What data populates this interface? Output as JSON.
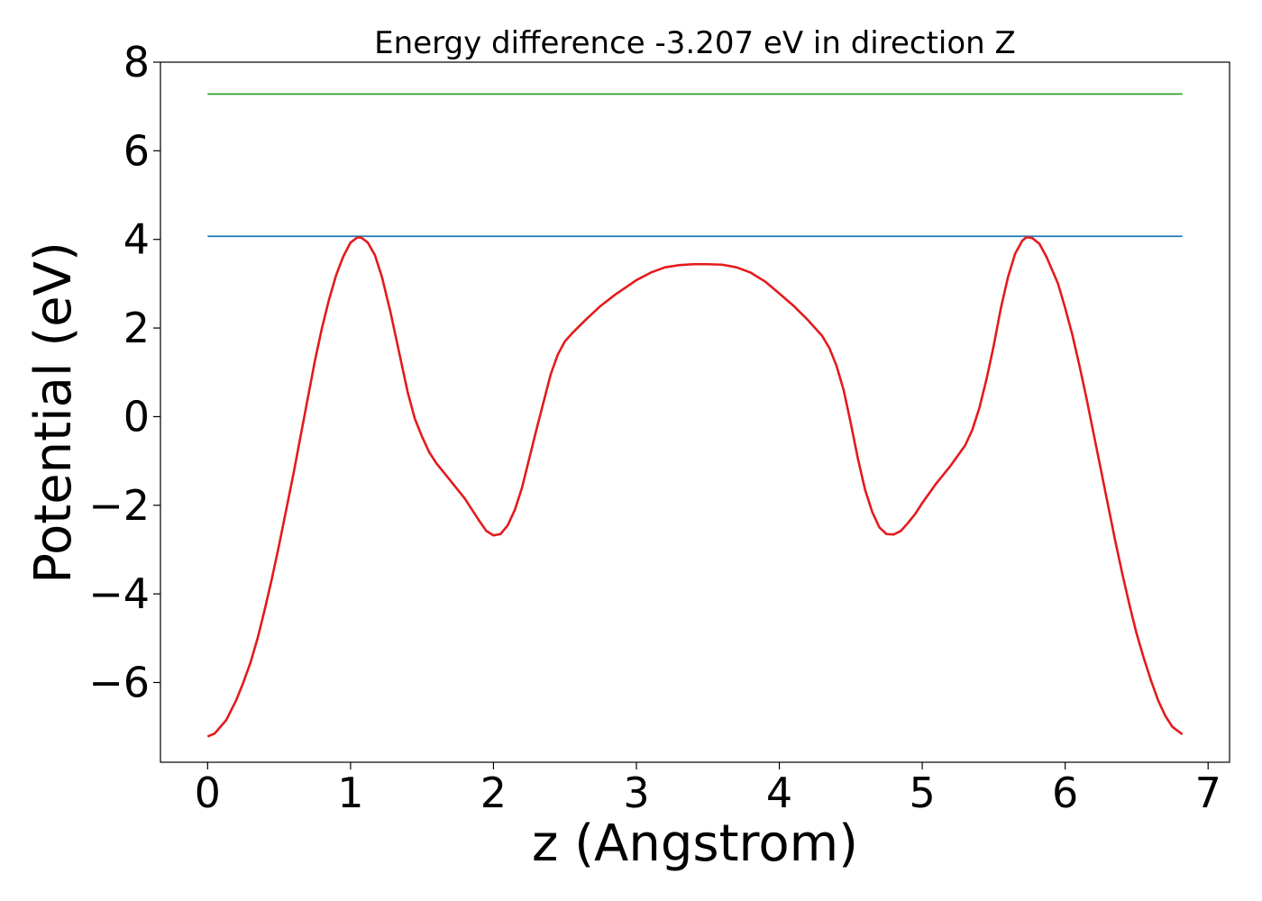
{
  "chart_data": {
    "type": "line",
    "title": "Energy difference -3.207 eV in direction Z",
    "xlabel": "z (Angstrom)",
    "ylabel": "Potential (eV)",
    "xlim": [
      -0.33,
      7.15
    ],
    "ylim": [
      -7.8,
      8.0
    ],
    "xticks": [
      0,
      1,
      2,
      3,
      4,
      5,
      6,
      7
    ],
    "xtick_labels": [
      "0",
      "1",
      "2",
      "3",
      "4",
      "5",
      "6",
      "7"
    ],
    "yticks": [
      -6,
      -4,
      -2,
      0,
      2,
      4,
      6,
      8
    ],
    "ytick_labels": [
      "−6",
      "−4",
      "−2",
      "0",
      "2",
      "4",
      "6",
      "8"
    ],
    "grid": false,
    "series": [
      {
        "color": "#2ca02c",
        "x": [
          0,
          6.82
        ],
        "y": [
          7.28,
          7.28
        ]
      },
      {
        "color": "#1f77b4",
        "x": [
          0,
          6.82
        ],
        "y": [
          4.07,
          4.07
        ]
      },
      {
        "color": "#e41a1c",
        "x": [
          0,
          0.05,
          0.13,
          0.2,
          0.25,
          0.3,
          0.35,
          0.4,
          0.45,
          0.5,
          0.55,
          0.6,
          0.65,
          0.7,
          0.75,
          0.8,
          0.85,
          0.9,
          0.95,
          1.0,
          1.05,
          1.08,
          1.12,
          1.17,
          1.22,
          1.28,
          1.33,
          1.4,
          1.45,
          1.5,
          1.55,
          1.6,
          1.7,
          1.8,
          1.85,
          1.9,
          1.95,
          2.0,
          2.05,
          2.1,
          2.15,
          2.2,
          2.3,
          2.4,
          2.45,
          2.5,
          2.55,
          2.65,
          2.75,
          2.85,
          3.0,
          3.1,
          3.2,
          3.3,
          3.4,
          3.5,
          3.6,
          3.7,
          3.8,
          3.9,
          4.0,
          4.1,
          4.2,
          4.3,
          4.35,
          4.4,
          4.45,
          4.5,
          4.55,
          4.6,
          4.65,
          4.7,
          4.75,
          4.8,
          4.85,
          4.9,
          4.95,
          5.0,
          5.1,
          5.2,
          5.3,
          5.35,
          5.4,
          5.45,
          5.5,
          5.55,
          5.6,
          5.65,
          5.7,
          5.73,
          5.77,
          5.82,
          5.87,
          5.95,
          6.0,
          6.05,
          6.1,
          6.15,
          6.2,
          6.25,
          6.3,
          6.35,
          6.4,
          6.45,
          6.5,
          6.55,
          6.6,
          6.65,
          6.7,
          6.75,
          6.82
        ],
        "y": [
          -7.22,
          -7.15,
          -6.85,
          -6.4,
          -6.0,
          -5.55,
          -5.0,
          -4.35,
          -3.65,
          -2.9,
          -2.1,
          -1.3,
          -0.45,
          0.4,
          1.25,
          2.0,
          2.65,
          3.2,
          3.62,
          3.93,
          4.05,
          4.03,
          3.93,
          3.65,
          3.15,
          2.35,
          1.6,
          0.55,
          -0.05,
          -0.45,
          -0.8,
          -1.05,
          -1.45,
          -1.85,
          -2.1,
          -2.35,
          -2.58,
          -2.68,
          -2.65,
          -2.45,
          -2.1,
          -1.6,
          -0.3,
          0.95,
          1.4,
          1.7,
          1.88,
          2.2,
          2.5,
          2.75,
          3.08,
          3.25,
          3.37,
          3.42,
          3.44,
          3.44,
          3.43,
          3.37,
          3.25,
          3.05,
          2.78,
          2.5,
          2.18,
          1.82,
          1.55,
          1.15,
          0.6,
          -0.15,
          -0.95,
          -1.65,
          -2.15,
          -2.5,
          -2.65,
          -2.66,
          -2.58,
          -2.4,
          -2.2,
          -1.95,
          -1.5,
          -1.1,
          -0.65,
          -0.3,
          0.2,
          0.85,
          1.6,
          2.45,
          3.15,
          3.68,
          3.97,
          4.05,
          4.03,
          3.9,
          3.6,
          3.0,
          2.45,
          1.85,
          1.15,
          0.4,
          -0.4,
          -1.2,
          -2.0,
          -2.8,
          -3.55,
          -4.25,
          -4.9,
          -5.45,
          -5.95,
          -6.4,
          -6.75,
          -7.0,
          -7.17
        ]
      }
    ]
  }
}
